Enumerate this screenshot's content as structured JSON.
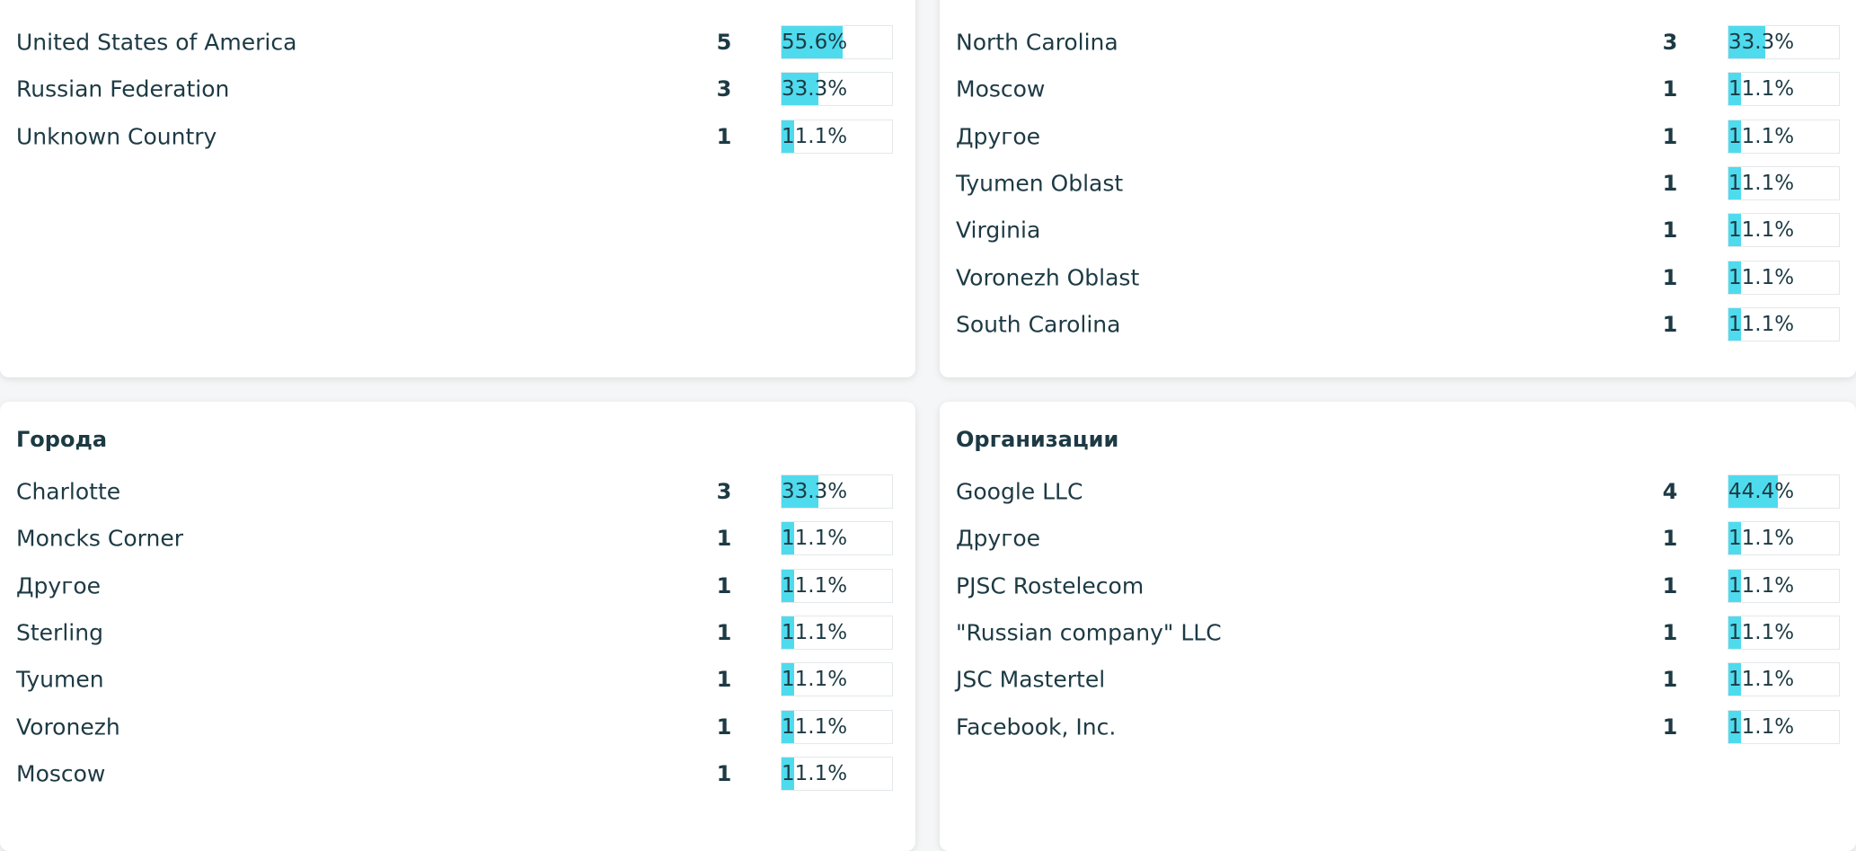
{
  "panels": [
    {
      "rows": [
        {
          "name": "United States of America",
          "count": 5,
          "share": {
            "value": 55.6,
            "label": "55.6%"
          }
        },
        {
          "name": "Russian Federation",
          "count": 3,
          "share": {
            "value": 33.3,
            "label": "33.3%"
          }
        },
        {
          "name": "Unknown Country",
          "count": 1,
          "share": {
            "value": 11.1,
            "label": "11.1%"
          }
        }
      ]
    },
    {
      "rows": [
        {
          "name": "North Carolina",
          "count": 3,
          "share": {
            "value": 33.3,
            "label": "33.3%"
          }
        },
        {
          "name": "Moscow",
          "count": 1,
          "share": {
            "value": 11.1,
            "label": "11.1%"
          }
        },
        {
          "name": "Другое",
          "count": 1,
          "share": {
            "value": 11.1,
            "label": "11.1%"
          }
        },
        {
          "name": "Tyumen Oblast",
          "count": 1,
          "share": {
            "value": 11.1,
            "label": "11.1%"
          }
        },
        {
          "name": "Virginia",
          "count": 1,
          "share": {
            "value": 11.1,
            "label": "11.1%"
          }
        },
        {
          "name": "Voronezh Oblast",
          "count": 1,
          "share": {
            "value": 11.1,
            "label": "11.1%"
          }
        },
        {
          "name": "South Carolina",
          "count": 1,
          "share": {
            "value": 11.1,
            "label": "11.1%"
          }
        }
      ]
    },
    {
      "title": "Города",
      "rows": [
        {
          "name": "Charlotte",
          "count": 3,
          "share": {
            "value": 33.3,
            "label": "33.3%"
          }
        },
        {
          "name": "Moncks Corner",
          "count": 1,
          "share": {
            "value": 11.1,
            "label": "11.1%"
          }
        },
        {
          "name": "Другое",
          "count": 1,
          "share": {
            "value": 11.1,
            "label": "11.1%"
          }
        },
        {
          "name": "Sterling",
          "count": 1,
          "share": {
            "value": 11.1,
            "label": "11.1%"
          }
        },
        {
          "name": "Tyumen",
          "count": 1,
          "share": {
            "value": 11.1,
            "label": "11.1%"
          }
        },
        {
          "name": "Voronezh",
          "count": 1,
          "share": {
            "value": 11.1,
            "label": "11.1%"
          }
        },
        {
          "name": "Moscow",
          "count": 1,
          "share": {
            "value": 11.1,
            "label": "11.1%"
          }
        }
      ]
    },
    {
      "title": "Организации",
      "rows": [
        {
          "name": "Google LLC",
          "count": 4,
          "share": {
            "value": 44.4,
            "label": "44.4%"
          }
        },
        {
          "name": "Другое",
          "count": 1,
          "share": {
            "value": 11.1,
            "label": "11.1%"
          }
        },
        {
          "name": "PJSC Rostelecom",
          "count": 1,
          "share": {
            "value": 11.1,
            "label": "11.1%"
          }
        },
        {
          "name": "\"Russian company\" LLC",
          "count": 1,
          "share": {
            "value": 11.1,
            "label": "11.1%"
          }
        },
        {
          "name": "JSC Mastertel",
          "count": 1,
          "share": {
            "value": 11.1,
            "label": "11.1%"
          }
        },
        {
          "name": "Facebook, Inc.",
          "count": 1,
          "share": {
            "value": 11.1,
            "label": "11.1%"
          }
        }
      ]
    }
  ]
}
